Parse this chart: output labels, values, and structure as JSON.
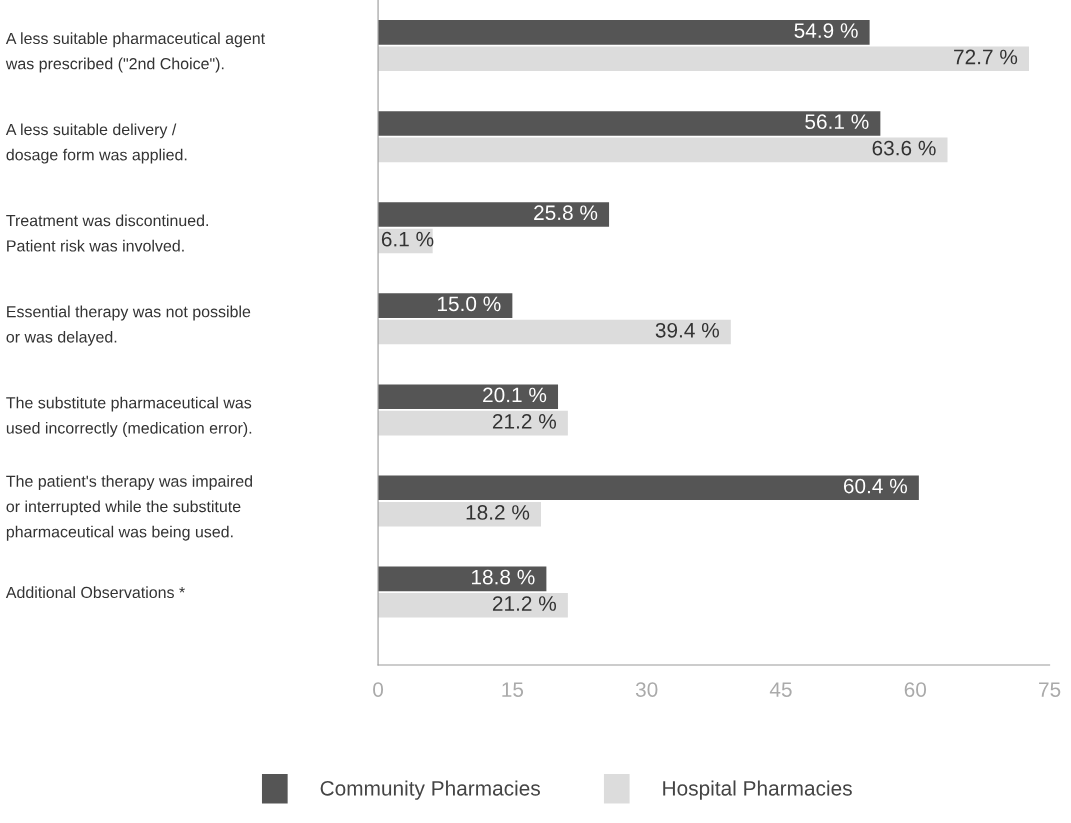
{
  "chart_data": {
    "type": "bar",
    "orientation": "horizontal",
    "categories": [
      "A less suitable pharmaceutical agent\nwas prescribed (\"2nd Choice\").",
      "A less suitable delivery /\ndosage form was applied.",
      "Treatment was discontinued.\nPatient risk was involved.",
      "Essential therapy was not possible\nor was delayed.",
      "The substitute pharmaceutical was\nused incorrectly (medication error).",
      "The patient's therapy was impaired\nor interrupted while the substitute\npharmaceutical was being used.",
      "Additional Observations *"
    ],
    "series": [
      {
        "name": "Community Pharmacies",
        "color": "#555555",
        "values": [
          54.9,
          56.1,
          25.8,
          15.0,
          20.1,
          60.4,
          18.8
        ],
        "value_labels": [
          "54.9 %",
          "56.1 %",
          "25.8 %",
          "15.0 %",
          "20.1 %",
          "60.4 %",
          "18.8 %"
        ]
      },
      {
        "name": "Hospital Pharmacies",
        "color": "#dcdcdc",
        "values": [
          72.7,
          63.6,
          6.1,
          39.4,
          21.2,
          18.2,
          21.2
        ],
        "value_labels": [
          "72.7 %",
          "63.6 %",
          "6.1 %",
          "39.4 %",
          "21.2 %",
          "18.2 %",
          "21.2 %"
        ]
      }
    ],
    "xlim": [
      0,
      75
    ],
    "xticks": [
      0,
      15,
      30,
      45,
      60,
      75
    ],
    "grid": false,
    "legend": "bottom"
  }
}
